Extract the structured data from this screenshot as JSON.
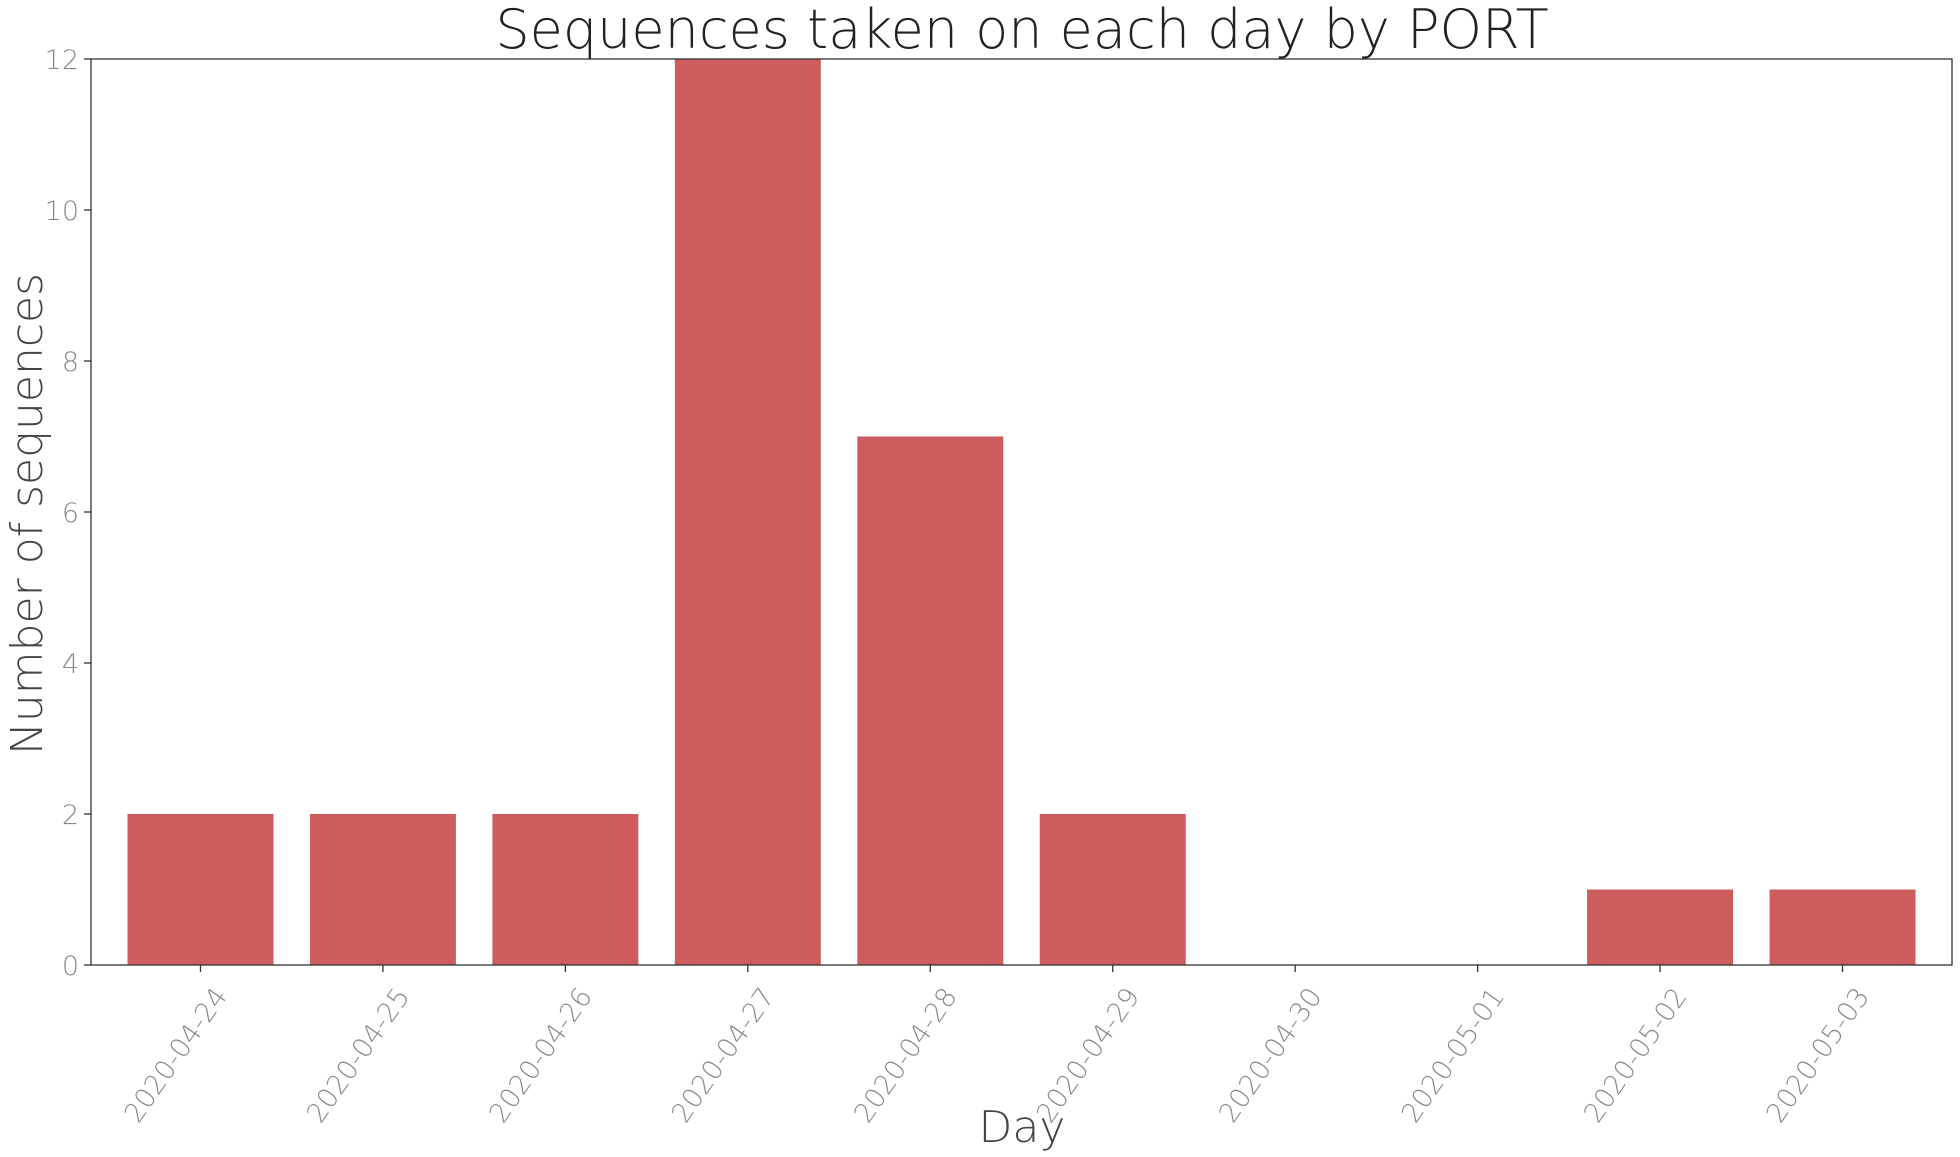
{
  "chart_data": {
    "type": "bar",
    "title": "Sequences taken on each day by PORT",
    "xlabel": "Day",
    "ylabel": "Number of sequences",
    "categories": [
      "2020-04-24",
      "2020-04-25",
      "2020-04-26",
      "2020-04-27",
      "2020-04-28",
      "2020-04-29",
      "2020-04-30",
      "2020-05-01",
      "2020-05-02",
      "2020-05-03"
    ],
    "values": [
      2,
      2,
      2,
      12,
      7,
      2,
      0,
      0,
      1,
      1
    ],
    "ylim": [
      0,
      12
    ],
    "yticks": [
      0,
      2,
      4,
      6,
      8,
      10,
      12
    ],
    "bar_color": "#cd5c5c",
    "grid": false,
    "legend": "none"
  }
}
